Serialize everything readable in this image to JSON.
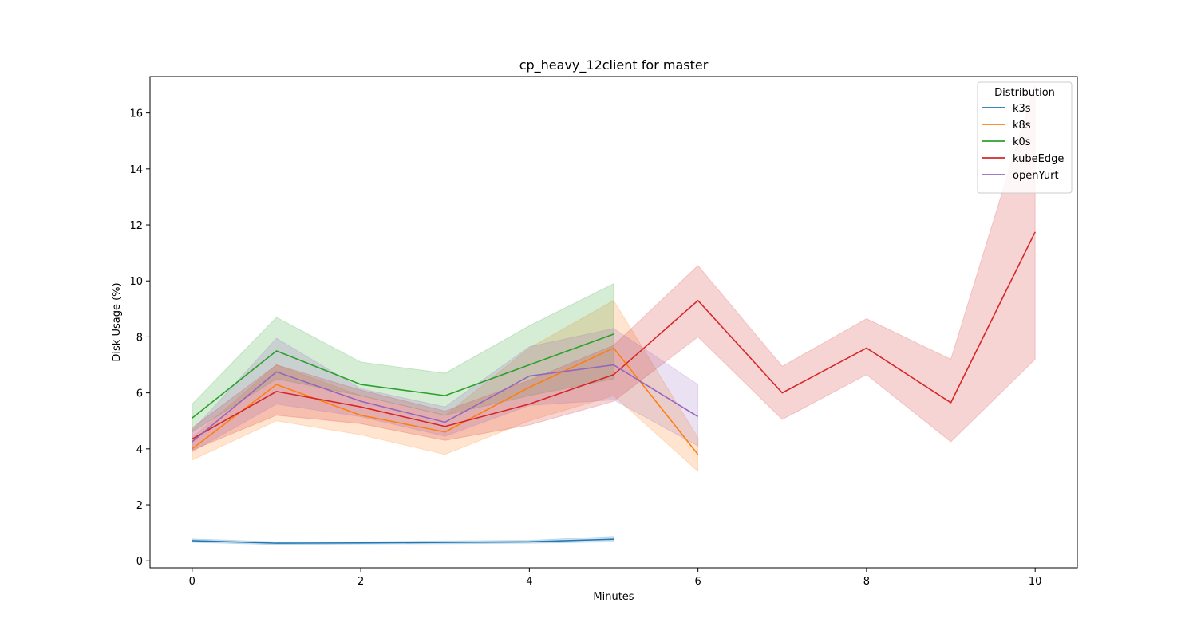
{
  "chart_data": {
    "type": "line",
    "title": "cp_heavy_12client for master",
    "xlabel": "Minutes",
    "ylabel": "Disk Usage (%)",
    "xlim": [
      -0.5,
      10.5
    ],
    "ylim": [
      -0.25,
      17.3
    ],
    "xticks": [
      0,
      2,
      4,
      6,
      8,
      10
    ],
    "yticks": [
      0,
      2,
      4,
      6,
      8,
      10,
      12,
      14,
      16
    ],
    "grid": false,
    "legend": {
      "title": "Distribution",
      "position": "top-right"
    },
    "series": [
      {
        "name": "k3s",
        "color": "#1f77b4",
        "x": [
          0,
          1,
          2,
          3,
          4,
          5
        ],
        "y": [
          0.72,
          0.63,
          0.64,
          0.66,
          0.68,
          0.77
        ],
        "lower": [
          0.66,
          0.58,
          0.6,
          0.61,
          0.63,
          0.68
        ],
        "upper": [
          0.78,
          0.68,
          0.68,
          0.71,
          0.73,
          0.87
        ]
      },
      {
        "name": "k8s",
        "color": "#ff7f0e",
        "x": [
          0,
          1,
          2,
          3,
          4,
          5,
          6
        ],
        "y": [
          4.0,
          6.3,
          5.2,
          4.6,
          6.2,
          7.6,
          3.8
        ],
        "lower": [
          3.6,
          5.0,
          4.5,
          3.8,
          5.0,
          5.9,
          3.2
        ],
        "upper": [
          4.4,
          7.0,
          5.9,
          5.2,
          7.6,
          9.3,
          4.4
        ]
      },
      {
        "name": "k0s",
        "color": "#2ca02c",
        "x": [
          0,
          1,
          2,
          3,
          4,
          5
        ],
        "y": [
          5.1,
          7.5,
          6.3,
          5.9,
          7.0,
          8.1
        ],
        "lower": [
          4.6,
          6.5,
          5.9,
          5.2,
          5.9,
          6.5
        ],
        "upper": [
          5.6,
          8.7,
          7.1,
          6.7,
          8.4,
          9.9
        ]
      },
      {
        "name": "kubeEdge",
        "color": "#d62728",
        "x": [
          0,
          1,
          2,
          3,
          4,
          5,
          6,
          7,
          8,
          9,
          10
        ],
        "y": [
          4.35,
          6.05,
          5.5,
          4.8,
          5.6,
          6.65,
          9.3,
          6.0,
          7.6,
          5.65,
          11.75
        ],
        "lower": [
          3.95,
          5.2,
          4.9,
          4.3,
          4.85,
          5.7,
          8.0,
          5.05,
          6.65,
          4.25,
          7.2
        ],
        "upper": [
          4.75,
          7.0,
          6.1,
          5.35,
          6.45,
          7.7,
          10.55,
          6.95,
          8.65,
          7.2,
          17.0
        ]
      },
      {
        "name": "openYurt",
        "color": "#9467bd",
        "x": [
          0,
          1,
          2,
          3,
          4,
          5,
          6
        ],
        "y": [
          4.25,
          6.75,
          5.7,
          4.95,
          6.6,
          7.0,
          5.15
        ],
        "lower": [
          3.9,
          5.6,
          5.15,
          4.45,
          5.55,
          5.75,
          4.1
        ],
        "upper": [
          4.65,
          7.95,
          6.15,
          5.5,
          7.65,
          8.3,
          6.3
        ]
      }
    ]
  }
}
